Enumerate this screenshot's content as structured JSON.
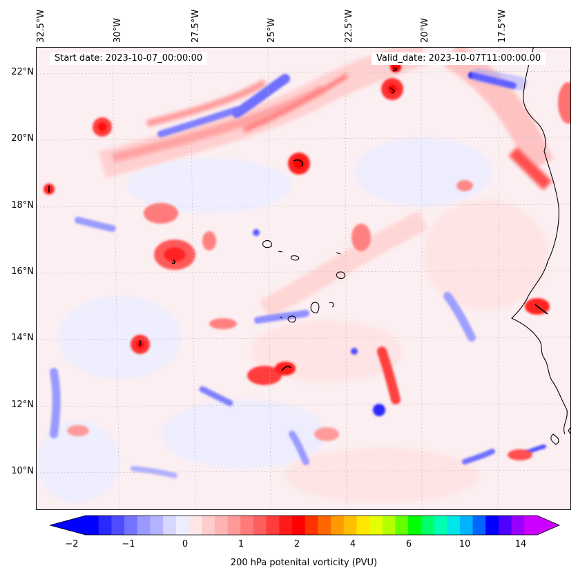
{
  "map": {
    "lon_labels": [
      "32.5°W",
      "30°W",
      "27.5°W",
      "25°W",
      "22.5°W",
      "20°W",
      "17.5°W"
    ],
    "lat_labels": [
      "22°N",
      "20°N",
      "18°N",
      "16°N",
      "14°N",
      "12°N",
      "10°N"
    ],
    "start_date": "Start date: 2023-10-07_00:00:00",
    "valid_date": "Valid_date: 2023-10-07T11:00:00.00"
  },
  "colorbar": {
    "title": "200 hPa potenital vorticity (PVU)",
    "tick_labels": [
      "−2",
      "−1",
      "0",
      "1",
      "2",
      "4",
      "6",
      "10",
      "14"
    ],
    "colors": [
      "#0000ff",
      "#2828ff",
      "#4d4dff",
      "#7373ff",
      "#9999ff",
      "#b3b3ff",
      "#d6d6ff",
      "#ededff",
      "#ffe6e6",
      "#ffcccc",
      "#ffb3b3",
      "#ff9999",
      "#ff7a7a",
      "#ff5e5e",
      "#ff3d3d",
      "#ff1a1a",
      "#ff0000",
      "#ff3300",
      "#ff6600",
      "#ff9900",
      "#ffbf00",
      "#ffe600",
      "#e6ff00",
      "#b3ff00",
      "#66ff00",
      "#00ff00",
      "#00ff66",
      "#00ffb3",
      "#00e6e6",
      "#00b3ff",
      "#0066ff",
      "#0000ff",
      "#4d00ff",
      "#9900ff",
      "#cc00ff"
    ],
    "max_triangle_color": "#cc00ff",
    "min_triangle_color": "#0000ff"
  }
}
